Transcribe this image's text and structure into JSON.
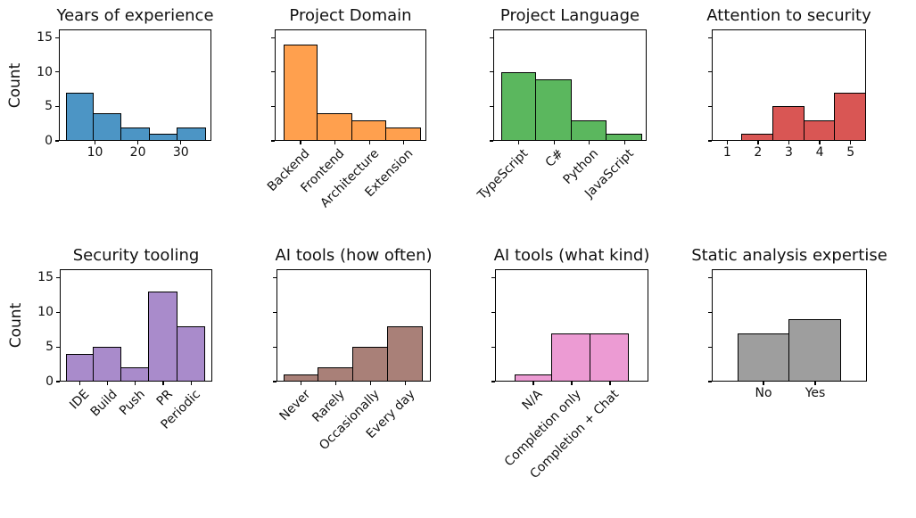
{
  "figure": {
    "background": "#FFFFFF",
    "rows": 2,
    "cols": 4
  },
  "style": {
    "bar_edge_color": "#000000",
    "frame_color": "#000000",
    "text_color": "#111111"
  },
  "chart_data": [
    {
      "title": "Years of experience",
      "type": "histogram",
      "color": "#4C95C5",
      "ylabel": "Count",
      "show_ytick_labels": true,
      "yticks": [
        0,
        5,
        10,
        15
      ],
      "ylim": [
        0,
        16.2
      ],
      "xlim": [
        1.6,
        37.1
      ],
      "bar_width": 6.52,
      "bar_centers": [
        6.46,
        12.98,
        19.5,
        26.02,
        32.54
      ],
      "values": [
        7,
        4,
        2,
        1,
        2
      ],
      "categories": [],
      "xticks": [
        {
          "x": 10,
          "label": "10"
        },
        {
          "x": 20,
          "label": "20"
        },
        {
          "x": 30,
          "label": "30"
        }
      ],
      "xtick_rotation": 0
    },
    {
      "title": "Project Domain",
      "type": "bar",
      "color": "#FFA04E",
      "ylabel": "",
      "show_ytick_labels": false,
      "yticks": [
        0,
        5,
        10,
        15
      ],
      "ylim": [
        0,
        16.2
      ],
      "xlim": [
        -0.75,
        3.65
      ],
      "bar_width": 1,
      "bar_centers": [
        0,
        1,
        2,
        3
      ],
      "values": [
        14,
        4,
        3,
        2
      ],
      "categories": [
        "Backend",
        "Frontend",
        "Architecture",
        "Extension"
      ],
      "xticks": [
        {
          "x": 0,
          "label": "Backend"
        },
        {
          "x": 1,
          "label": "Frontend"
        },
        {
          "x": 2,
          "label": "Architecture"
        },
        {
          "x": 3,
          "label": "Extension"
        }
      ],
      "xtick_rotation": 45
    },
    {
      "title": "Project Language",
      "type": "bar",
      "color": "#5BB75E",
      "ylabel": "",
      "show_ytick_labels": false,
      "yticks": [
        0,
        5,
        10,
        15
      ],
      "ylim": [
        0,
        16.2
      ],
      "xlim": [
        -0.73,
        3.63
      ],
      "bar_width": 1,
      "bar_centers": [
        0,
        1,
        2,
        3
      ],
      "values": [
        10,
        9,
        3,
        1
      ],
      "categories": [
        "TypeScript",
        "C#",
        "Python",
        "JavaScript"
      ],
      "xticks": [
        {
          "x": 0,
          "label": "TypeScript"
        },
        {
          "x": 1,
          "label": "C#"
        },
        {
          "x": 2,
          "label": "Python"
        },
        {
          "x": 3,
          "label": "JavaScript"
        }
      ],
      "xtick_rotation": 45
    },
    {
      "title": "Attention to security",
      "type": "histogram",
      "color": "#D95654",
      "ylabel": "",
      "show_ytick_labels": false,
      "yticks": [
        0,
        5,
        10,
        15
      ],
      "ylim": [
        0,
        16.2
      ],
      "xlim": [
        0.5,
        5.5
      ],
      "bar_width": 1,
      "bar_centers": [
        1,
        2,
        3,
        4,
        5
      ],
      "values": [
        0,
        1,
        5,
        3,
        7
      ],
      "categories": [],
      "xticks": [
        {
          "x": 1,
          "label": "1"
        },
        {
          "x": 2,
          "label": "2"
        },
        {
          "x": 3,
          "label": "3"
        },
        {
          "x": 4,
          "label": "4"
        },
        {
          "x": 5,
          "label": "5"
        }
      ],
      "xtick_rotation": 0
    },
    {
      "title": "Security tooling",
      "type": "bar",
      "color": "#A98BCB",
      "ylabel": "Count",
      "show_ytick_labels": true,
      "yticks": [
        0,
        5,
        10,
        15
      ],
      "ylim": [
        0,
        16.2
      ],
      "xlim": [
        -0.72,
        4.76
      ],
      "bar_width": 1,
      "bar_centers": [
        0,
        1,
        2,
        3,
        4
      ],
      "values": [
        4,
        5,
        2,
        13,
        8
      ],
      "categories": [
        "IDE",
        "Build",
        "Push",
        "PR",
        "Periodic"
      ],
      "xticks": [
        {
          "x": 0,
          "label": "IDE"
        },
        {
          "x": 1,
          "label": "Build"
        },
        {
          "x": 2,
          "label": "Push"
        },
        {
          "x": 3,
          "label": "PR"
        },
        {
          "x": 4,
          "label": "Periodic"
        }
      ],
      "xtick_rotation": 45
    },
    {
      "title": "AI tools (how often)",
      "type": "bar",
      "color": "#A98078",
      "ylabel": "",
      "show_ytick_labels": false,
      "yticks": [
        0,
        5,
        10,
        15
      ],
      "ylim": [
        0,
        16.2
      ],
      "xlim": [
        -0.71,
        3.73
      ],
      "bar_width": 1,
      "bar_centers": [
        0,
        1,
        2,
        3
      ],
      "values": [
        1,
        2,
        5,
        8
      ],
      "categories": [
        "Never",
        "Rarely",
        "Occasionally",
        "Every day"
      ],
      "xticks": [
        {
          "x": 0,
          "label": "Never"
        },
        {
          "x": 1,
          "label": "Rarely"
        },
        {
          "x": 2,
          "label": "Occasionally"
        },
        {
          "x": 3,
          "label": "Every day"
        }
      ],
      "xtick_rotation": 45
    },
    {
      "title": "AI tools (what kind)",
      "type": "bar",
      "color": "#EC9BD3",
      "ylabel": "",
      "show_ytick_labels": false,
      "yticks": [
        0,
        5,
        10,
        15
      ],
      "ylim": [
        0,
        16.2
      ],
      "xlim": [
        -1.0,
        3.0
      ],
      "bar_width": 1,
      "bar_centers": [
        0,
        1,
        2
      ],
      "values": [
        1,
        7,
        7
      ],
      "categories": [
        "N/A",
        "Completion only",
        "Completion + Chat"
      ],
      "xticks": [
        {
          "x": 0,
          "label": "N/A"
        },
        {
          "x": 1,
          "label": "Completion only"
        },
        {
          "x": 2,
          "label": "Completion + Chat"
        }
      ],
      "xtick_rotation": 45
    },
    {
      "title": "Static analysis expertise",
      "type": "bar",
      "color": "#9E9E9E",
      "ylabel": "",
      "show_ytick_labels": false,
      "yticks": [
        0,
        5,
        10,
        15
      ],
      "ylim": [
        0,
        16.2
      ],
      "xlim": [
        -1.0,
        2.0
      ],
      "bar_width": 1,
      "bar_centers": [
        0,
        1
      ],
      "values": [
        7,
        9
      ],
      "categories": [
        "No",
        "Yes"
      ],
      "xticks": [
        {
          "x": 0,
          "label": "No"
        },
        {
          "x": 1,
          "label": "Yes"
        }
      ],
      "xtick_rotation": 0
    }
  ]
}
